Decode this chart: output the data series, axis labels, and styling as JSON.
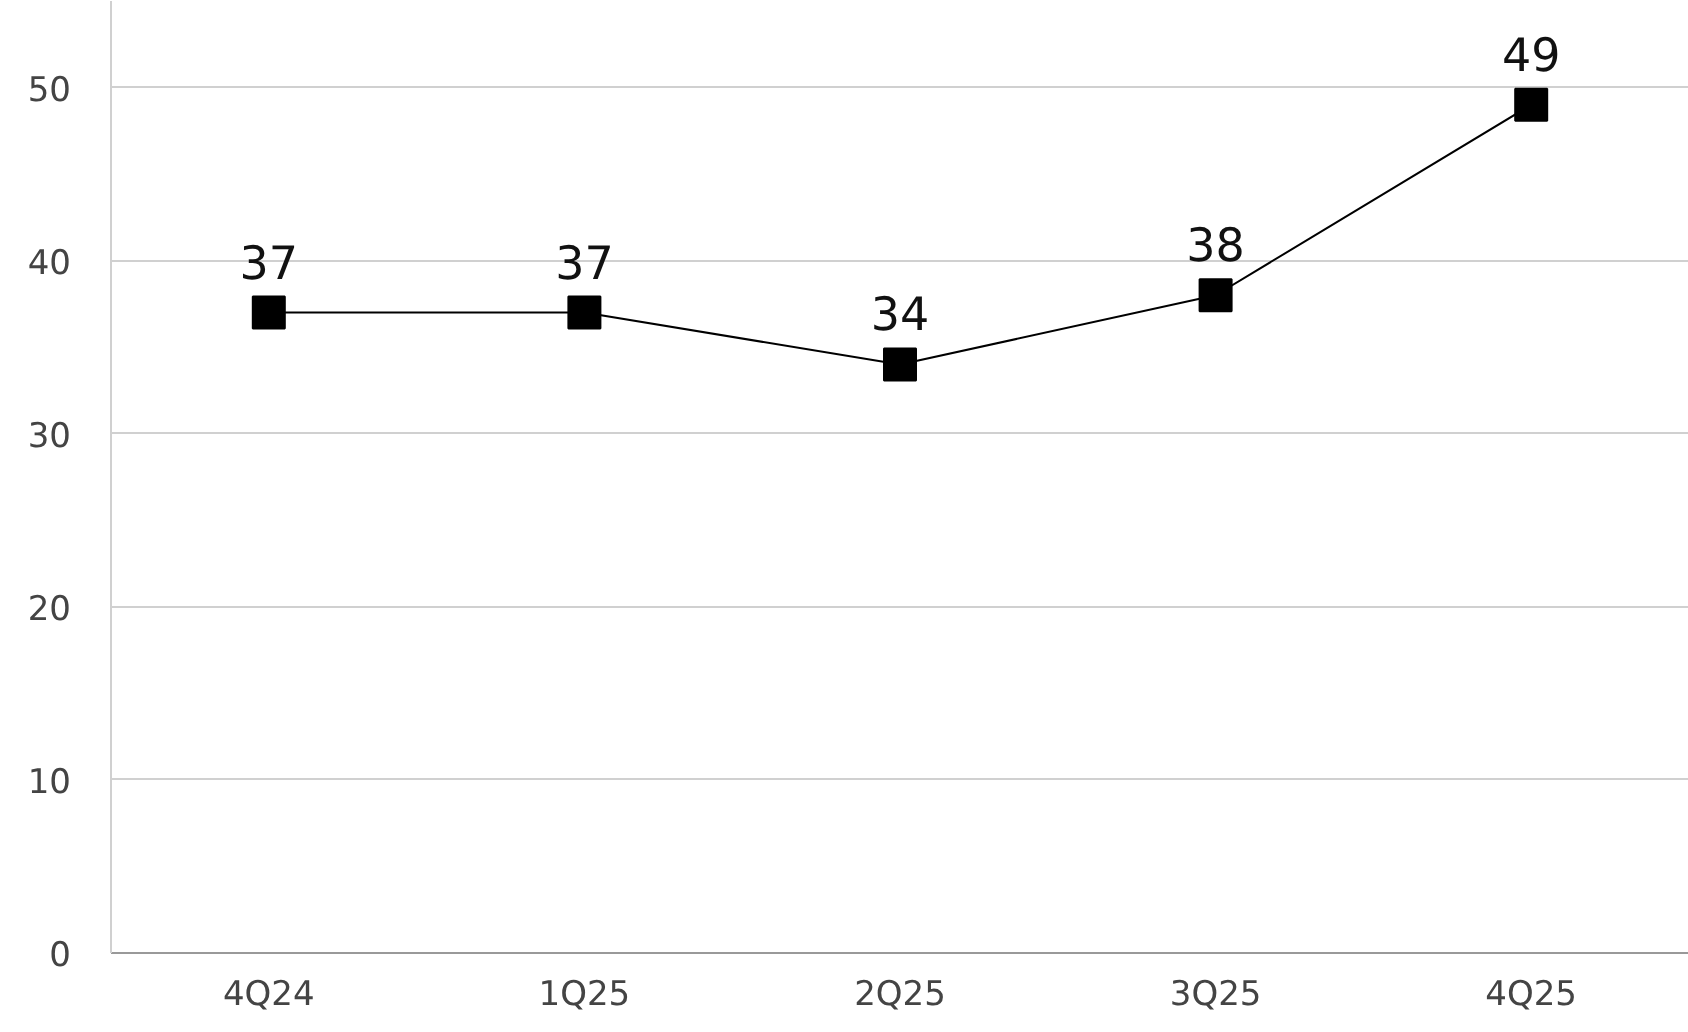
{
  "chart_data": {
    "type": "line",
    "categories": [
      "4Q24",
      "1Q25",
      "2Q25",
      "3Q25",
      "4Q25"
    ],
    "series": [
      {
        "color": "#000000",
        "values": [
          37,
          37,
          34,
          38,
          49
        ]
      }
    ],
    "ylim": [
      0,
      55
    ],
    "yticks": [
      0,
      10,
      20,
      30,
      40,
      50
    ],
    "grid": "y",
    "marker": "square",
    "line_style": "solid",
    "data_labels": true
  }
}
